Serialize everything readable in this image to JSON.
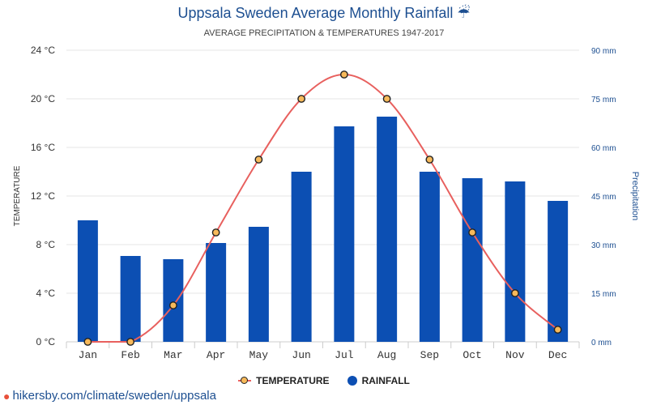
{
  "header": {
    "title": "Uppsala Sweden Average Monthly Rainfall ☔",
    "subtitle": "AVERAGE PRECIPITATION & TEMPERATURES 1947-2017"
  },
  "legend": {
    "temperature": "TEMPERATURE",
    "rainfall": "RAINFALL"
  },
  "source": {
    "link": "hikersby.com/climate/sweden/uppsala"
  },
  "colors": {
    "rainfall_bar": "#0c4fb3",
    "temperature_line": "#e8605e",
    "temperature_marker": "#f7b95a",
    "right_axis_text": "#1d4f91"
  },
  "chart_data": {
    "type": "bar",
    "categories": [
      "Jan",
      "Feb",
      "Mar",
      "Apr",
      "May",
      "Jun",
      "Jul",
      "Aug",
      "Sep",
      "Oct",
      "Nov",
      "Dec"
    ],
    "series": [
      {
        "name": "RAINFALL",
        "type": "bar",
        "axis": "right",
        "values": [
          37.5,
          26.5,
          25.5,
          30.5,
          35.5,
          52.5,
          66.5,
          69.5,
          52.5,
          50.5,
          49.5,
          43.5
        ]
      },
      {
        "name": "TEMPERATURE",
        "type": "line",
        "axis": "left",
        "values": [
          0,
          0,
          3,
          9,
          15,
          20,
          22,
          20,
          15,
          9,
          4,
          1
        ]
      }
    ],
    "ylabel": "TEMPERATURE",
    "ylabel_right": "Precipitation",
    "ylim": [
      0,
      24
    ],
    "ylim_right": [
      0,
      90
    ],
    "yticks": [
      "0 °C",
      "4 °C",
      "8 °C",
      "12 °C",
      "16 °C",
      "20 °C",
      "24 °C"
    ],
    "yticks_right": [
      "0 mm",
      "15 mm",
      "30 mm",
      "45 mm",
      "60 mm",
      "75 mm",
      "90 mm"
    ],
    "grid": true,
    "legend_position": "bottom"
  }
}
